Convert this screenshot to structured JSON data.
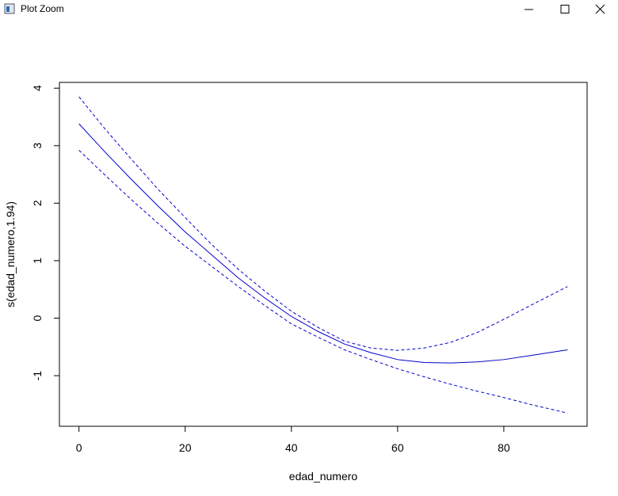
{
  "window": {
    "title": "Plot Zoom"
  },
  "chart_data": {
    "type": "line",
    "x_label": "edad_numero",
    "y_label": "s(edad_numero,1.94)",
    "x": [
      0,
      5,
      10,
      15,
      20,
      25,
      30,
      35,
      40,
      45,
      50,
      55,
      60,
      65,
      70,
      75,
      80,
      85,
      92
    ],
    "series": [
      {
        "color": "#0000cd",
        "dashed": false,
        "values": [
          3.38,
          2.88,
          2.4,
          1.94,
          1.5,
          1.1,
          0.7,
          0.35,
          0.03,
          -0.23,
          -0.45,
          -0.6,
          -0.72,
          -0.77,
          -0.78,
          -0.76,
          -0.72,
          -0.65,
          -0.55
        ]
      },
      {
        "color": "#0000cd",
        "dashed": true,
        "values": [
          3.85,
          3.28,
          2.75,
          2.23,
          1.75,
          1.28,
          0.85,
          0.47,
          0.12,
          -0.16,
          -0.4,
          -0.52,
          -0.56,
          -0.52,
          -0.42,
          -0.25,
          -0.02,
          0.22,
          0.55
        ]
      },
      {
        "color": "#0000cd",
        "dashed": true,
        "values": [
          2.92,
          2.48,
          2.05,
          1.64,
          1.25,
          0.9,
          0.55,
          0.22,
          -0.1,
          -0.33,
          -0.55,
          -0.72,
          -0.88,
          -1.02,
          -1.15,
          -1.27,
          -1.38,
          -1.5,
          -1.65
        ]
      }
    ],
    "xlim": [
      -3.68,
      95.68
    ],
    "xticks": [
      0,
      20,
      40,
      60,
      80
    ],
    "ylim": [
      -1.88,
      4.1
    ],
    "yticks": [
      -1,
      0,
      1,
      2,
      3,
      4
    ]
  }
}
